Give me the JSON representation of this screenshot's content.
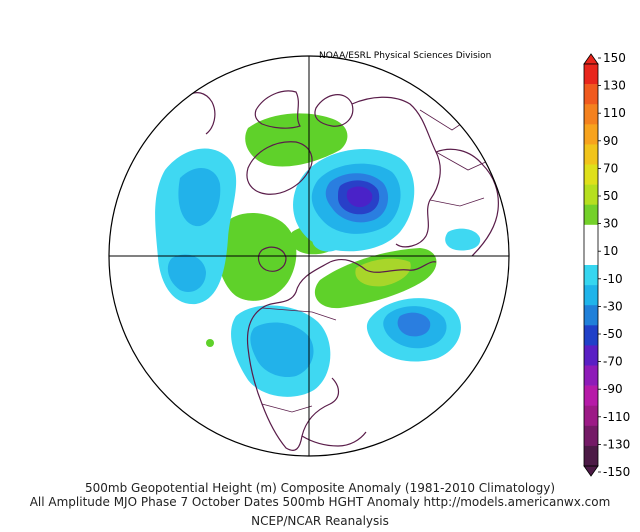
{
  "header": {
    "credit": "NOAA/ESRL Physical Sciences Division"
  },
  "footer": {
    "title": "500mb Geopotential Height (m) Composite Anomaly (1981-2010 Climatology)",
    "subtitle": "All Amplitude MJO Phase 7 October Dates 500mb HGHT Anomaly http://models.americanwx.com",
    "source": "NCEP/NCAR Reanalysis"
  },
  "colorbar": {
    "labels": [
      "150",
      "130",
      "110",
      "90",
      "70",
      "50",
      "30",
      "10",
      "-10",
      "-30",
      "-50",
      "-70",
      "-90",
      "-110",
      "-130",
      "-150"
    ],
    "colors": [
      "#e8261c",
      "#f05a1e",
      "#f4811e",
      "#f7a31d",
      "#f1c41b",
      "#dfe01b",
      "#b6df1f",
      "#74d12a",
      "#ffffff",
      "#ffffff",
      "#36d6f0",
      "#1fb4ea",
      "#2080d9",
      "#2040c8",
      "#5a1fc4",
      "#8e1bb8",
      "#b61aa8",
      "#9c1a86",
      "#741a66",
      "#4c1a46"
    ]
  },
  "map": {
    "projection": "polar-stereographic",
    "colors": {
      "coast": "#5a1d4a",
      "grid": "#000000",
      "green": "#5fd12a",
      "yellow_green": "#a8d62a",
      "cyan": "#3fd8f2",
      "light_blue": "#22b2ea",
      "blue": "#2a7ee0",
      "deep_blue": "#2840c8",
      "violet": "#4a22c8"
    }
  }
}
